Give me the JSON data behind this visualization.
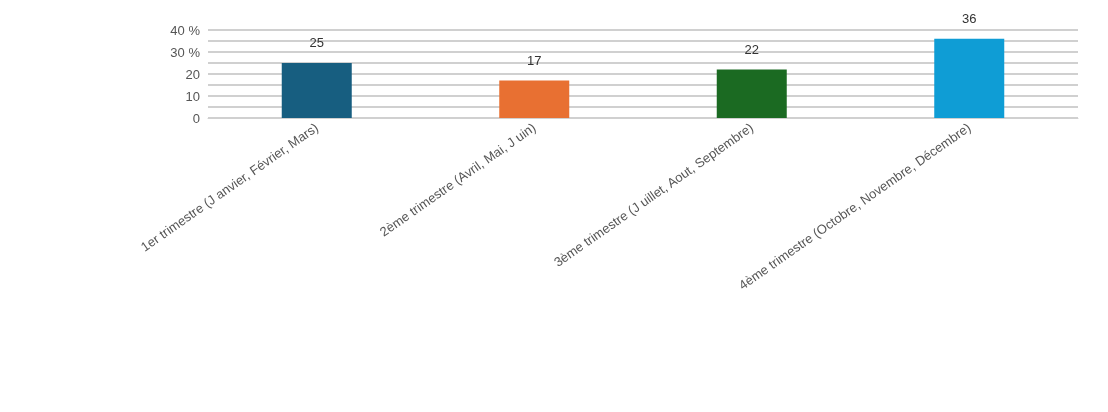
{
  "chart_data": {
    "type": "bar",
    "categories": [
      "1er trimestre (J anvier, Février, Mars)",
      "2ème trimestre (Avril, Mai, J uin)",
      "3ème trimestre (J uillet, Aout, Septembre)",
      "4ème trimestre (Octobre, Novembre, Décembre)"
    ],
    "values": [
      25,
      17,
      22,
      36
    ],
    "colors": [
      "#175e80",
      "#e87032",
      "#1b6a22",
      "#0f9dd5"
    ],
    "ylim": [
      0,
      40
    ],
    "yticks": [
      0,
      {
        "value": 5,
        "label": null
      },
      10,
      {
        "value": 15,
        "label": null
      },
      20,
      {
        "value": 25,
        "label": null
      },
      {
        "value": 30,
        "label": "30 %"
      },
      {
        "value": 35,
        "label": null
      },
      {
        "value": 40,
        "label": "40 %"
      }
    ],
    "grid": true,
    "data_labels": true
  }
}
